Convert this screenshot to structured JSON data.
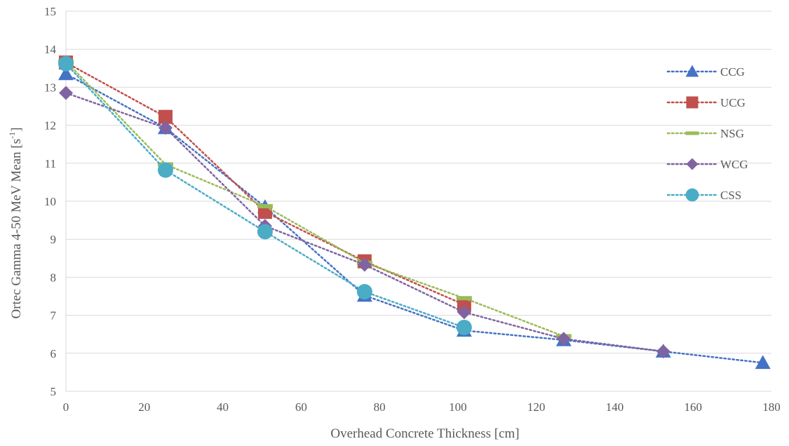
{
  "chart_data": {
    "type": "line",
    "xlabel": "Overhead Concrete Thickness [cm]",
    "ylabel": "Ortec Gamma 4-50 MeV Mean [s",
    "ylabel_sup": "-1",
    "ylabel_end": "]",
    "xlim": [
      0,
      180
    ],
    "ylim": [
      5,
      15
    ],
    "xticks": [
      "0",
      "20",
      "40",
      "60",
      "80",
      "100",
      "120",
      "140",
      "160",
      "180"
    ],
    "yticks": [
      "5",
      "6",
      "7",
      "8",
      "9",
      "10",
      "11",
      "12",
      "13",
      "14",
      "15"
    ],
    "grid": true,
    "legend_position": "right",
    "series": [
      {
        "name": "CCG",
        "color": "#4472C4",
        "marker": "triangle",
        "x": [
          0,
          25.4,
          50.8,
          76.2,
          101.6,
          127,
          152.4,
          177.8
        ],
        "y": [
          13.35,
          11.93,
          9.85,
          7.52,
          6.6,
          6.35,
          6.05,
          5.75
        ]
      },
      {
        "name": "UCG",
        "color": "#C0504D",
        "marker": "square",
        "x": [
          0,
          25.4,
          50.8,
          76.2,
          101.6
        ],
        "y": [
          13.65,
          12.22,
          9.72,
          8.42,
          7.28
        ]
      },
      {
        "name": "NSG",
        "color": "#9BBB59",
        "marker": "dash",
        "x": [
          0,
          25.4,
          50.8,
          76.2,
          101.6,
          127
        ],
        "y": [
          13.68,
          10.97,
          9.87,
          8.38,
          7.45,
          6.45
        ]
      },
      {
        "name": "WCG",
        "color": "#8064A2",
        "marker": "diamond",
        "x": [
          0,
          25.4,
          50.8,
          76.2,
          101.6,
          127,
          152.4
        ],
        "y": [
          12.85,
          11.93,
          9.35,
          8.33,
          7.08,
          6.38,
          6.05
        ]
      },
      {
        "name": "CSS",
        "color": "#4BACC6",
        "marker": "circle",
        "x": [
          0,
          25.4,
          50.8,
          76.2,
          101.6
        ],
        "y": [
          13.62,
          10.82,
          9.2,
          7.62,
          6.68
        ]
      }
    ]
  }
}
